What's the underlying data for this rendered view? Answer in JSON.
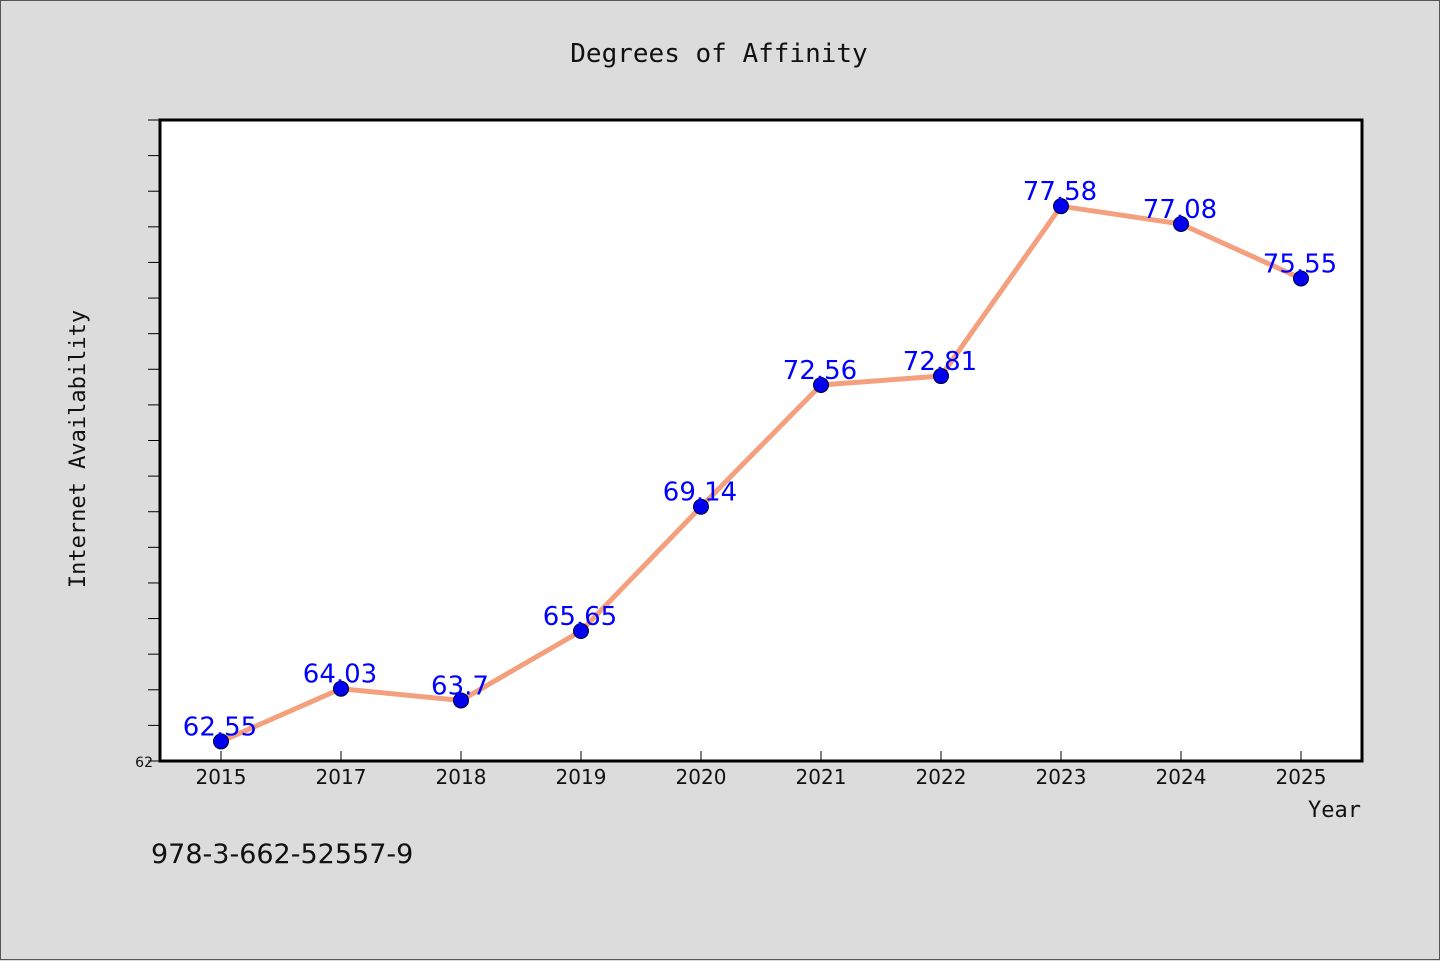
{
  "chart_data": {
    "type": "line",
    "title": "Degrees of Affinity",
    "xlabel": "Year",
    "ylabel": "Internet Availability",
    "categories": [
      "2015",
      "2017",
      "2018",
      "2019",
      "2020",
      "2021",
      "2022",
      "2023",
      "2024",
      "2025"
    ],
    "values": [
      62.55,
      64.03,
      63.7,
      65.65,
      69.14,
      72.56,
      72.81,
      77.58,
      77.08,
      75.55
    ],
    "data_labels": [
      "62.55",
      "64.03",
      "63.7",
      "65.65",
      "69.14",
      "72.56",
      "72.81",
      "77.58",
      "77.08",
      "75.55"
    ],
    "y_tick_label": "62",
    "ylim": [
      62,
      80
    ],
    "grid": false,
    "legend": "none",
    "colors": {
      "line": "#f4a07e",
      "marker": "#0000ee",
      "data_label": "#0000ff",
      "plot_bg": "#ffffff",
      "page_bg": "#dcdcdc"
    }
  },
  "footer": {
    "isbn": "978-3-662-52557-9"
  }
}
